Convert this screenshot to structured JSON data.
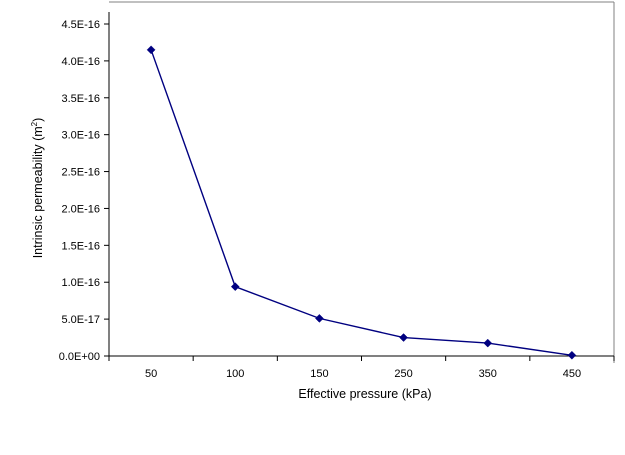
{
  "chart_data": {
    "type": "line",
    "xlabel": "Effective pressure  (kPa)",
    "ylabel_main": "Intrinsic permeability (m",
    "ylabel_sup": "2",
    "ylabel_close": ")",
    "categories": [
      "50",
      "100",
      "150",
      "250",
      "350",
      "450"
    ],
    "values": [
      4.15e-16,
      9.4e-17,
      5.1e-17,
      2.5e-17,
      1.75e-17,
      1e-18
    ],
    "ylim": [
      0,
      4.5e-16
    ],
    "yticks": [
      0,
      5e-17,
      1e-16,
      1.5e-16,
      2e-16,
      2.5e-16,
      3e-16,
      3.5e-16,
      4e-16,
      4.5e-16
    ],
    "ytick_labels": [
      "0.0E+00",
      "5.0E-17",
      "1.0E-16",
      "1.5E-16",
      "2.0E-16",
      "2.5E-16",
      "3.0E-16",
      "3.5E-16",
      "4.0E-16",
      "4.5E-16"
    ],
    "grid": false,
    "legend": false,
    "colors": {
      "line": "#000080",
      "marker": "#000080",
      "frame": "#808080",
      "axis": "#000000"
    },
    "marker": "diamond"
  }
}
